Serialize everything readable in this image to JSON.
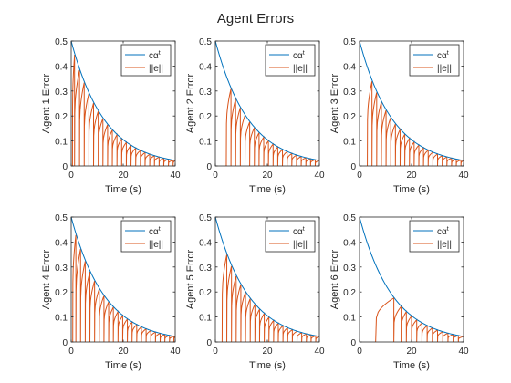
{
  "figure": {
    "title": "Agent Errors",
    "background": "#ffffff"
  },
  "colors": {
    "envelope": "#0072BD",
    "error": "#D95319",
    "axis": "#262626"
  },
  "chart_data": [
    {
      "type": "line",
      "title": "",
      "xlabel": "Time (s)",
      "ylabel": "Agent 1 Error",
      "xlim": [
        0,
        40
      ],
      "ylim": [
        0,
        0.5
      ],
      "xticks": [
        "0",
        "20",
        "40"
      ],
      "yticks": [
        "0",
        "0.1",
        "0.2",
        "0.3",
        "0.4",
        "0.5"
      ],
      "legend": {
        "position": "top-right",
        "entries": [
          "cα^t",
          "||e||"
        ]
      },
      "series": [
        {
          "name": "cα^t",
          "c": 0.5,
          "alpha": 0.925,
          "x_range": [
            0,
            40
          ]
        },
        {
          "name": "||e||",
          "events": [
            0.5,
            1.3,
            3.2,
            5.0,
            6.8,
            8.6,
            10.4,
            12.2,
            14.0,
            15.8,
            17.6,
            19.4,
            21.2,
            23.0,
            24.8,
            26.6,
            28.4,
            30.2,
            32.0,
            33.8,
            35.6,
            37.4,
            39.2
          ]
        }
      ]
    },
    {
      "type": "line",
      "title": "",
      "xlabel": "Time (s)",
      "ylabel": "Agent 2 Error",
      "xlim": [
        0,
        40
      ],
      "ylim": [
        0,
        0.5
      ],
      "xticks": [
        "0",
        "20",
        "40"
      ],
      "yticks": [
        "0",
        "0.1",
        "0.2",
        "0.3",
        "0.4",
        "0.5"
      ],
      "legend": {
        "position": "top-right",
        "entries": [
          "cα^t",
          "||e||"
        ]
      },
      "series": [
        {
          "name": "cα^t",
          "c": 0.5,
          "alpha": 0.925,
          "x_range": [
            0,
            40
          ]
        },
        {
          "name": "||e||",
          "events": [
            4.2,
            6.0,
            7.8,
            9.6,
            11.4,
            13.2,
            15.0,
            16.8,
            18.6,
            20.4,
            22.2,
            24.0,
            25.8,
            27.6,
            29.4,
            31.2,
            33.0,
            34.8,
            36.6,
            38.4
          ]
        }
      ]
    },
    {
      "type": "line",
      "title": "",
      "xlabel": "Time (s)",
      "ylabel": "Agent 3 Error",
      "xlim": [
        0,
        40
      ],
      "ylim": [
        0,
        0.5
      ],
      "xticks": [
        "0",
        "20",
        "40"
      ],
      "yticks": [
        "0",
        "0.1",
        "0.2",
        "0.3",
        "0.4",
        "0.5"
      ],
      "legend": {
        "position": "top-right",
        "entries": [
          "cα^t",
          "||e||"
        ]
      },
      "series": [
        {
          "name": "cα^t",
          "c": 0.5,
          "alpha": 0.925,
          "x_range": [
            0,
            40
          ]
        },
        {
          "name": "||e||",
          "events": [
            3.0,
            4.8,
            6.6,
            8.4,
            10.2,
            12.0,
            13.8,
            15.6,
            17.4,
            19.2,
            21.0,
            22.8,
            24.6,
            26.4,
            28.2,
            30.0,
            31.8,
            33.6,
            35.4,
            37.2,
            39.0
          ]
        }
      ]
    },
    {
      "type": "line",
      "title": "",
      "xlabel": "Time (s)",
      "ylabel": "Agent 4 Error",
      "xlim": [
        0,
        40
      ],
      "ylim": [
        0,
        0.5
      ],
      "xticks": [
        "0",
        "20",
        "40"
      ],
      "yticks": [
        "0",
        "0.1",
        "0.2",
        "0.3",
        "0.4",
        "0.5"
      ],
      "legend": {
        "position": "top-right",
        "entries": [
          "cα^t",
          "||e||"
        ]
      },
      "series": [
        {
          "name": "cα^t",
          "c": 0.5,
          "alpha": 0.925,
          "x_range": [
            0,
            40
          ]
        },
        {
          "name": "||e||",
          "events": [
            0.6,
            1.8,
            3.6,
            5.4,
            7.2,
            9.0,
            10.8,
            12.6,
            14.4,
            16.2,
            18.0,
            19.8,
            21.6,
            23.4,
            25.2,
            27.0,
            28.8,
            30.6,
            32.4,
            34.2,
            36.0,
            37.8,
            39.5
          ]
        }
      ]
    },
    {
      "type": "line",
      "title": "",
      "xlabel": "Time (s)",
      "ylabel": "Agent 5 Error",
      "xlim": [
        0,
        40
      ],
      "ylim": [
        0,
        0.5
      ],
      "xticks": [
        "0",
        "20",
        "40"
      ],
      "yticks": [
        "0",
        "0.1",
        "0.2",
        "0.3",
        "0.4",
        "0.5"
      ],
      "legend": {
        "position": "top-right",
        "entries": [
          "cα^t",
          "||e||"
        ]
      },
      "series": [
        {
          "name": "cα^t",
          "c": 0.5,
          "alpha": 0.925,
          "x_range": [
            0,
            40
          ]
        },
        {
          "name": "||e||",
          "events": [
            2.6,
            4.4,
            6.2,
            8.0,
            9.8,
            11.6,
            13.4,
            15.2,
            17.0,
            18.8,
            20.6,
            22.4,
            24.2,
            26.0,
            27.8,
            29.6,
            31.4,
            33.2,
            35.0,
            36.8,
            38.6
          ]
        }
      ]
    },
    {
      "type": "line",
      "title": "",
      "xlabel": "Time (s)",
      "ylabel": "Agent 6 Error",
      "xlim": [
        0,
        40
      ],
      "ylim": [
        0,
        0.5
      ],
      "xticks": [
        "0",
        "20",
        "40"
      ],
      "yticks": [
        "0",
        "0.1",
        "0.2",
        "0.3",
        "0.4",
        "0.5"
      ],
      "legend": {
        "position": "top-right",
        "entries": [
          "cα^t",
          "||e||"
        ]
      },
      "series": [
        {
          "name": "cα^t",
          "c": 0.5,
          "alpha": 0.925,
          "x_range": [
            0,
            40
          ]
        },
        {
          "name": "||e||",
          "events": [
            6.2,
            13.2,
            16.0,
            18.0,
            20.0,
            22.0,
            24.0,
            26.0,
            28.0,
            30.0,
            32.0,
            34.0,
            36.0,
            38.0
          ]
        }
      ]
    }
  ]
}
